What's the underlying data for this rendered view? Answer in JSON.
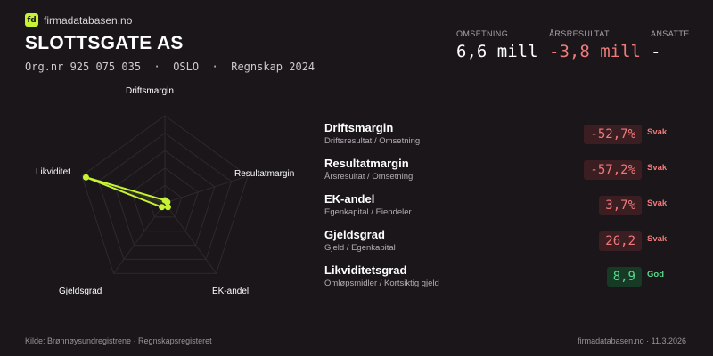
{
  "brand": {
    "logo_text": "fd",
    "name": "firmadatabasen.no"
  },
  "company": {
    "name": "SLOTTSGATE AS",
    "orgnr": "Org.nr 925 075 035",
    "city": "OSLO",
    "period": "Regnskap 2024",
    "separator": "·"
  },
  "kpis": [
    {
      "label": "OMSETNING",
      "value": "6,6 mill",
      "color": "#ffffff"
    },
    {
      "label": "ÅRSRESULTAT",
      "value": "-3,8 mill",
      "color": "#f07a7a"
    },
    {
      "label": "ANSATTE",
      "value": "-",
      "color": "#ffffff"
    }
  ],
  "radar": {
    "axes": [
      "Driftsmargin",
      "Resultatmargin",
      "EK-andel",
      "Gjeldsgrad",
      "Likviditet"
    ],
    "levels": 5,
    "values": [
      0.03,
      0.03,
      0.06,
      0.06,
      0.95
    ],
    "color": "#c6f432"
  },
  "metrics": [
    {
      "title": "Driftsmargin",
      "subtitle": "Driftsresultat / Omsetning",
      "value": "-52,7%",
      "rating": "Svak",
      "status": "bad"
    },
    {
      "title": "Resultatmargin",
      "subtitle": "Årsresultat / Omsetning",
      "value": "-57,2%",
      "rating": "Svak",
      "status": "bad"
    },
    {
      "title": "EK-andel",
      "subtitle": "Egenkapital / Eiendeler",
      "value": "3,7%",
      "rating": "Svak",
      "status": "bad"
    },
    {
      "title": "Gjeldsgrad",
      "subtitle": "Gjeld / Egenkapital",
      "value": "26,2",
      "rating": "Svak",
      "status": "bad"
    },
    {
      "title": "Likviditetsgrad",
      "subtitle": "Omløpsmidler / Kortsiktig gjeld",
      "value": "8,9",
      "rating": "God",
      "status": "good"
    }
  ],
  "footer": {
    "source": "Kilde: Brønnøysundregistrene · Regnskapsregisteret",
    "site_date": "firmadatabasen.no · 11.3.2026"
  }
}
